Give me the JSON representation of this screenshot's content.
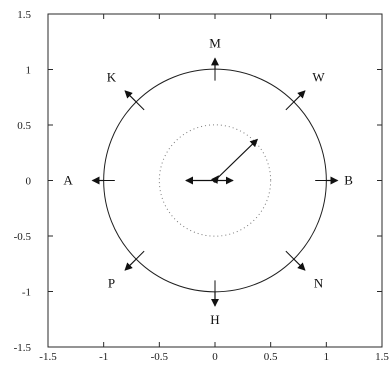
{
  "chart_data": {
    "type": "scatter",
    "xlim": [
      -1.5,
      1.5
    ],
    "ylim": [
      -1.5,
      1.5
    ],
    "grid": false,
    "legend": "none",
    "x_ticks": [
      "-1.5",
      "-1",
      "-0.5",
      "0",
      "0.5",
      "1",
      "1.5"
    ],
    "y_ticks": [
      "1.5",
      "1",
      "0.5",
      "0",
      "-0.5",
      "-1",
      "-1.5"
    ],
    "unit_circle": {
      "cx": 0,
      "cy": 0,
      "r": 1
    },
    "inner_circle": {
      "cx": 0,
      "cy": 0,
      "r": 0.5,
      "style": "dotted"
    },
    "points": [
      {
        "label": "M",
        "x": 0,
        "y": 1,
        "dx": 0,
        "dy": 0.1
      },
      {
        "label": "W",
        "x": 0.7071,
        "y": 0.7071,
        "dx": 0.1,
        "dy": 0.1
      },
      {
        "label": "B",
        "x": 1,
        "y": 0,
        "dx": 0.1,
        "dy": 0
      },
      {
        "label": "N",
        "x": 0.7071,
        "y": -0.7071,
        "dx": 0.1,
        "dy": -0.1
      },
      {
        "label": "H",
        "x": 0,
        "y": -1,
        "dx": 0,
        "dy": -0.13
      },
      {
        "label": "P",
        "x": -0.7071,
        "y": -0.7071,
        "dx": -0.1,
        "dy": -0.1
      },
      {
        "label": "A",
        "x": -1,
        "y": 0,
        "dx": -0.1,
        "dy": 0
      },
      {
        "label": "K",
        "x": -0.7071,
        "y": 0.7071,
        "dx": -0.1,
        "dy": 0.1
      }
    ],
    "center_arrows": [
      {
        "x": 0,
        "y": 0,
        "dx": 0.38,
        "dy": 0.37
      },
      {
        "x": 0,
        "y": 0,
        "dx": -0.26,
        "dy": 0
      },
      {
        "x": 0,
        "y": 0,
        "dx": 0.16,
        "dy": 0
      },
      {
        "x": 0,
        "y": 0,
        "dx": 0.03,
        "dy": 0.04
      }
    ]
  },
  "colors": {
    "axis": "#2a2a2a",
    "circle": "#1f1f1f",
    "inner_circle": "#7a7a7a",
    "arrow": "#111111",
    "text": "#111111"
  }
}
